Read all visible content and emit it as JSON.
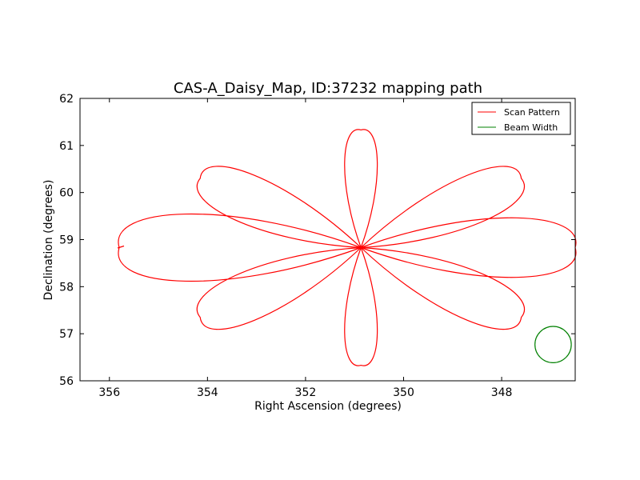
{
  "chart_data": {
    "type": "line",
    "title": "CAS-A_Daisy_Map, ID:37232 mapping path",
    "xlabel": "Right Ascension (degrees)",
    "ylabel": "Declination (degrees)",
    "xlim": [
      356.6,
      346.5
    ],
    "ylim": [
      56,
      62
    ],
    "x_reversed": true,
    "xticks": [
      356,
      354,
      352,
      350,
      348
    ],
    "yticks": [
      56,
      57,
      58,
      59,
      60,
      61,
      62
    ],
    "grid": false,
    "legend": {
      "placement": "top-right",
      "entries": [
        {
          "label": "Scan Pattern",
          "color": "#ff0000"
        },
        {
          "label": "Beam Width",
          "color": "#008000"
        }
      ]
    },
    "series": [
      {
        "name": "Scan Pattern",
        "color": "#ff0000",
        "shape": "daisy",
        "center": [
          350.87,
          58.83
        ],
        "petals": 8,
        "petal_tips": [
          [
            346.5,
            58.83
          ],
          [
            347.6,
            60.3
          ],
          [
            350.87,
            61.33
          ],
          [
            354.15,
            60.3
          ],
          [
            355.8,
            58.83
          ],
          [
            354.15,
            57.35
          ],
          [
            350.87,
            56.33
          ],
          [
            347.6,
            57.35
          ]
        ],
        "start": [
          355.8,
          58.83
        ]
      },
      {
        "name": "Beam Width",
        "color": "#008000",
        "shape": "circle",
        "center": [
          346.95,
          56.77
        ],
        "radius_ra": 0.37
      }
    ]
  }
}
